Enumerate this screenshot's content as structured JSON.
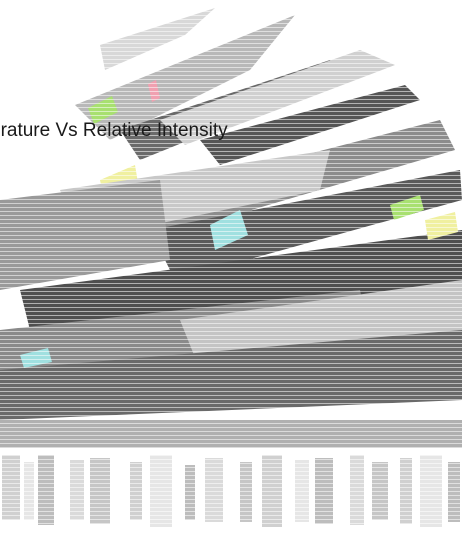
{
  "chart_data": {
    "type": "area",
    "title": "erature Vs Relative Intensity",
    "xlabel": "",
    "ylabel": "",
    "legend": "none",
    "grid": false,
    "colors": {
      "series_dark": "#555555",
      "series_mid": "#8c8c8c",
      "series_light": "#c8c8c8",
      "accent_green": "#a8e070",
      "accent_yellow": "#f0f0a0",
      "accent_cyan": "#a0e0e0",
      "accent_pink": "#f0a0b0",
      "base_band": "#b0b0b0"
    }
  }
}
